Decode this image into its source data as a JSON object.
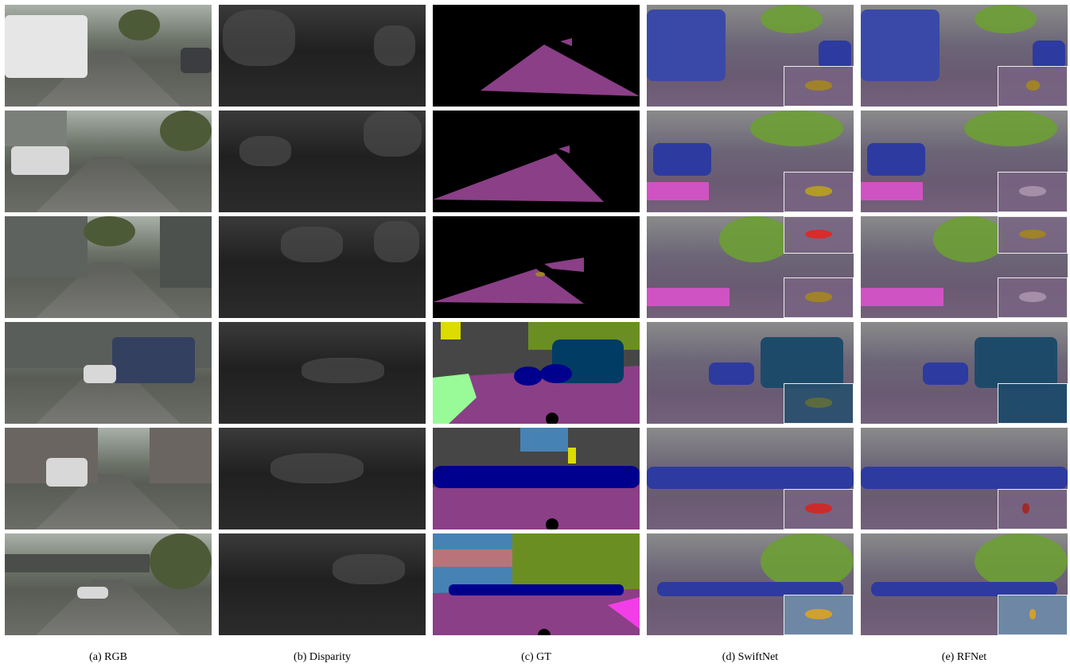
{
  "captions": {
    "a": "(a) RGB",
    "b": "(b) Disparity",
    "c": "(c) GT",
    "d": "(d) SwiftNet",
    "e": "(e) RFNet"
  },
  "colors": {
    "road": "#8a3f86",
    "sidewalk": "#f23ee6",
    "car": "#00008e",
    "vegetation": "#6b8e23",
    "building": "#464646",
    "sky": "#4682b4",
    "traffic_sign": "#dcdc00",
    "pole": "#999999",
    "bus": "#003c64",
    "terrain": "#98fb98",
    "unlabeled": "#000000"
  }
}
